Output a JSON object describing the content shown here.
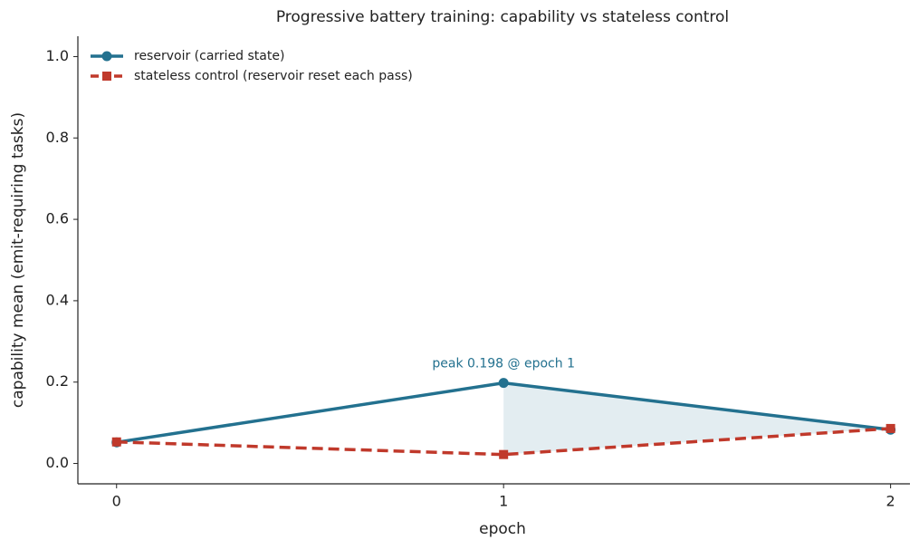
{
  "chart_data": {
    "type": "line",
    "title": "Progressive battery training: capability vs stateless control",
    "xlabel": "epoch",
    "ylabel": "capability mean (emit-requiring tasks)",
    "x": [
      0,
      1,
      2
    ],
    "series": [
      {
        "name": "reservoir (carried state)",
        "color": "#23718f",
        "marker": "circle",
        "linestyle": "solid",
        "values": [
          0.052,
          0.198,
          0.083
        ]
      },
      {
        "name": "stateless control (reservoir reset each pass)",
        "color": "#c0392b",
        "marker": "square",
        "linestyle": "dashed",
        "values": [
          0.053,
          0.022,
          0.086
        ]
      }
    ],
    "annotation": "peak 0.198 @ epoch 1",
    "xlim": [
      -0.1,
      2.05
    ],
    "xticks": [
      0,
      1,
      2
    ],
    "ylim": [
      -0.05,
      1.05
    ],
    "yticks": [
      {
        "value": 0,
        "label": "0.0"
      },
      {
        "value": 0.2,
        "label": "0.2"
      },
      {
        "value": 0.4,
        "label": "0.4"
      },
      {
        "value": 0.6,
        "label": "0.6"
      },
      {
        "value": 0.8,
        "label": "0.8"
      },
      {
        "value": 1,
        "label": "1.0"
      }
    ],
    "legend": "upper left",
    "grid": false
  }
}
